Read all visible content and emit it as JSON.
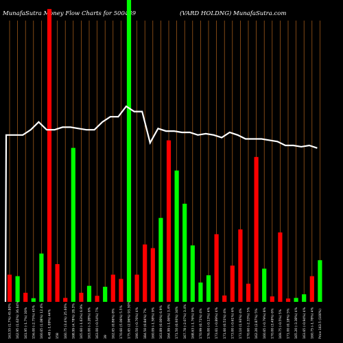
{
  "header": {
    "title_left": "MunafaSutra  Money Flow  Charts for 500439",
    "title_right": "(VARD HOLDNG) MunafaSutra.com"
  },
  "colors": {
    "background": "#000000",
    "up": "#00ff00",
    "down": "#ff0000",
    "gridline": "#b5651d",
    "price_line": "#ffffff"
  },
  "chart_data": {
    "type": "bar",
    "description_series": "money flow volume bars with price line overlay",
    "y_max": 100,
    "price_range": [
      0,
      100
    ],
    "bars": [
      {
        "label": "163.55 (1.7%) 45.80%",
        "color": "red",
        "value": 9
      },
      {
        "label": "162.95 (1.62%) 36.64%",
        "color": "green",
        "value": 8.5
      },
      {
        "label": "161.95 (-1.7%) 30%",
        "color": "red",
        "value": 3
      },
      {
        "label": "156.00 (-2.75%) 45%",
        "color": "green",
        "value": 1.2
      },
      {
        "label": "160.65 (1.08%) 12.4%",
        "color": "green",
        "value": 16
      },
      {
        "label": "6.48 (-1.09%) 44%",
        "color": "red",
        "value": 97
      },
      {
        "label": "158",
        "color": "red",
        "value": 12.5
      },
      {
        "label": "160.75 (3.4%) 25.60%",
        "color": "red",
        "value": 1.3
      },
      {
        "label": "168.99 (4.78%) 28.3%",
        "color": "green",
        "value": 51
      },
      {
        "label": "165.60 (-1.63%) 6.9%",
        "color": "red",
        "value": 3
      },
      {
        "label": "163.00 (-3.28%) 6%",
        "color": "green",
        "value": 5.3
      },
      {
        "label": "163.00 (-0.54%) 7%",
        "color": "red",
        "value": 2
      },
      {
        "label": "39",
        "color": "green",
        "value": 5
      },
      {
        "label": "162.65 (0.86%) 8%",
        "color": "red",
        "value": 9
      },
      {
        "label": "170.60 (5.06%) 5.5%",
        "color": "red",
        "value": 7.6
      },
      {
        "label": "175.65 (2.96%) 93.30%",
        "color": "green",
        "value": 100
      },
      {
        "label": "190.50 (-0.76%) 4%",
        "color": "red",
        "value": 9
      },
      {
        "label": "184.50 (0.84%) 7%",
        "color": "red",
        "value": 19
      },
      {
        "label": "160.09 (-1.58%) 9%",
        "color": "red",
        "value": 17.8
      },
      {
        "label": "163.89 (0.00%) 6.9%",
        "color": "green",
        "value": 27.8
      },
      {
        "label": "164.99 (-1.06%) 3.4%",
        "color": "red",
        "value": 53.5
      },
      {
        "label": "171.50 (0.93%) 34%",
        "color": "green",
        "value": 43.5
      },
      {
        "label": "167.78 (-2.07%) 3.4%",
        "color": "green",
        "value": 32.5
      },
      {
        "label": "168.63 (-1.76%) 9%",
        "color": "green",
        "value": 18.7
      },
      {
        "label": "170.99 (0.71%) 4%",
        "color": "green",
        "value": 6.4
      },
      {
        "label": "176.00 (-0.13%) 4%",
        "color": "green",
        "value": 8.8
      },
      {
        "label": "173.61 (-0.89%) 4%",
        "color": "red",
        "value": 22.4
      },
      {
        "label": "171.60 (0.51%) 4%",
        "color": "red",
        "value": 2.1
      },
      {
        "label": "173.00 (-0.61%) 6%",
        "color": "red",
        "value": 12
      },
      {
        "label": "173.10 (1.93%) 4%",
        "color": "red",
        "value": 24
      },
      {
        "label": "170.60 (-2.33%) 5%",
        "color": "red",
        "value": 6
      },
      {
        "label": "162.20 (2.87%) 5%",
        "color": "red",
        "value": 48
      },
      {
        "label": "160.65 (-0.79%) 8%",
        "color": "green",
        "value": 11
      },
      {
        "label": "170.00 (3.49%) 6%",
        "color": "red",
        "value": 1.8
      },
      {
        "label": "169.75 (-0.5%) 5%",
        "color": "red",
        "value": 23
      },
      {
        "label": "171.00 (0.18%) 5%",
        "color": "red",
        "value": 1.1
      },
      {
        "label": "165.20 (-3.38%) 4%",
        "color": "green",
        "value": 1.3
      },
      {
        "label": "163.65 (-0.94%) 4%",
        "color": "green",
        "value": 2.5
      },
      {
        "label": "160.75 (-1.78%) 4%",
        "color": "red",
        "value": 8.5
      },
      {
        "label": "Price 163.5 (100%)",
        "color": "green",
        "value": 13.8
      }
    ],
    "price": [
      64,
      64,
      64,
      66,
      69,
      66,
      66,
      67,
      67,
      66.5,
      66,
      66,
      69,
      71,
      71,
      75,
      73,
      73,
      61,
      66.5,
      65.5,
      65.5,
      65,
      65,
      64,
      64.5,
      64,
      63,
      65,
      64,
      62.5,
      62.5,
      62.5,
      62,
      61.5,
      60,
      60,
      59.5,
      60,
      59
    ]
  }
}
